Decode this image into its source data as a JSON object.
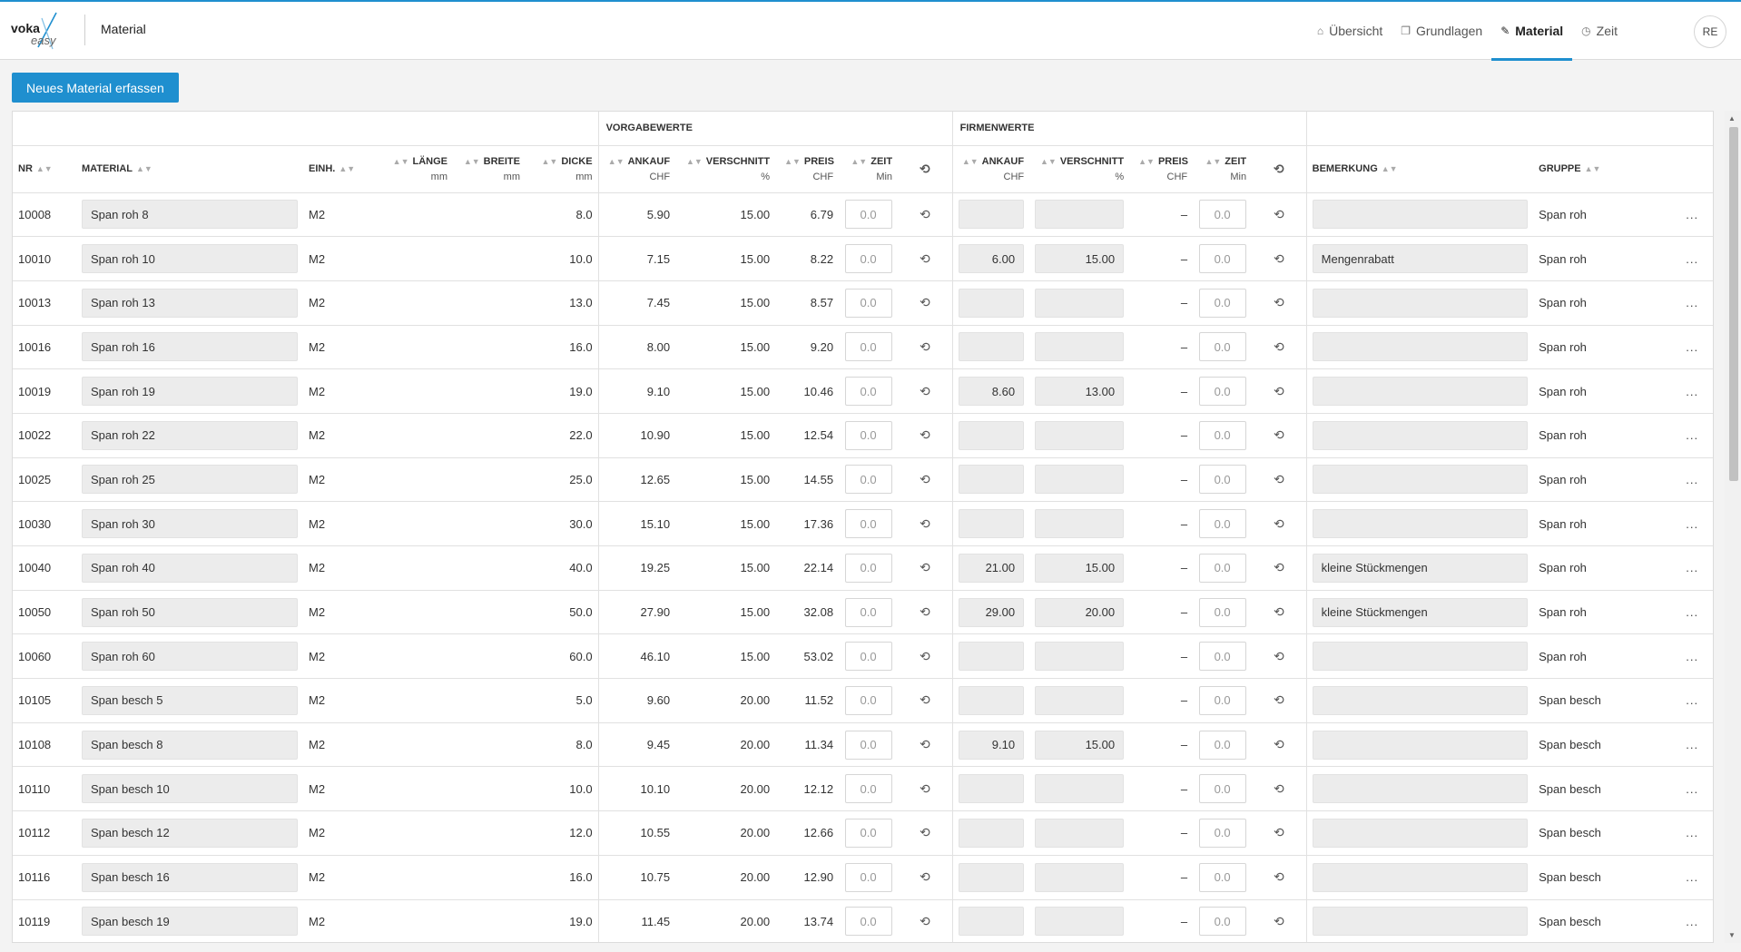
{
  "header": {
    "logo_text": "voka easy",
    "page_title": "Material",
    "nav": [
      {
        "label": "Übersicht",
        "icon": "home-icon",
        "active": false
      },
      {
        "label": "Grundlagen",
        "icon": "cube-icon",
        "active": false
      },
      {
        "label": "Material",
        "icon": "ruler-icon",
        "active": true
      },
      {
        "label": "Zeit",
        "icon": "clock-icon",
        "active": false
      }
    ],
    "avatar": "RE"
  },
  "toolbar": {
    "new_button": "Neues Material erfassen"
  },
  "table": {
    "groups": {
      "vorgabe": "VORGABEWERTE",
      "firma": "FIRMENWERTE"
    },
    "columns": {
      "nr": "NR",
      "material": "MATERIAL",
      "einh": "EINH.",
      "laenge": "LÄNGE",
      "laenge_unit": "mm",
      "breite": "BREITE",
      "breite_unit": "mm",
      "dicke": "DICKE",
      "dicke_unit": "mm",
      "ankauf": "ANKAUF",
      "ankauf_unit": "CHF",
      "verschnitt": "VERSCHNITT",
      "verschnitt_unit": "%",
      "preis": "PREIS",
      "preis_unit": "CHF",
      "zeit": "ZEIT",
      "zeit_unit": "Min",
      "f_ankauf": "ANKAUF",
      "f_ankauf_unit": "CHF",
      "f_verschnitt": "VERSCHNITT",
      "f_verschnitt_unit": "%",
      "f_preis": "PREIS",
      "f_preis_unit": "CHF",
      "f_zeit": "ZEIT",
      "f_zeit_unit": "Min",
      "bemerkung": "BEMERKUNG",
      "gruppe": "GRUPPE"
    },
    "rows": [
      {
        "nr": "10008",
        "material": "Span roh 8",
        "einh": "M2",
        "dicke": "8.0",
        "ankauf": "5.90",
        "verschnitt": "15.00",
        "preis": "6.79",
        "zeit": "0.0",
        "f_ankauf": "",
        "f_verschnitt": "",
        "f_preis": "–",
        "f_zeit": "0.0",
        "bemerkung": "",
        "gruppe": "Span roh"
      },
      {
        "nr": "10010",
        "material": "Span roh 10",
        "einh": "M2",
        "dicke": "10.0",
        "ankauf": "7.15",
        "verschnitt": "15.00",
        "preis": "8.22",
        "zeit": "0.0",
        "f_ankauf": "6.00",
        "f_verschnitt": "15.00",
        "f_preis": "–",
        "f_zeit": "0.0",
        "bemerkung": "Mengenrabatt",
        "gruppe": "Span roh"
      },
      {
        "nr": "10013",
        "material": "Span roh 13",
        "einh": "M2",
        "dicke": "13.0",
        "ankauf": "7.45",
        "verschnitt": "15.00",
        "preis": "8.57",
        "zeit": "0.0",
        "f_ankauf": "",
        "f_verschnitt": "",
        "f_preis": "–",
        "f_zeit": "0.0",
        "bemerkung": "",
        "gruppe": "Span roh"
      },
      {
        "nr": "10016",
        "material": "Span roh 16",
        "einh": "M2",
        "dicke": "16.0",
        "ankauf": "8.00",
        "verschnitt": "15.00",
        "preis": "9.20",
        "zeit": "0.0",
        "f_ankauf": "",
        "f_verschnitt": "",
        "f_preis": "–",
        "f_zeit": "0.0",
        "bemerkung": "",
        "gruppe": "Span roh"
      },
      {
        "nr": "10019",
        "material": "Span roh 19",
        "einh": "M2",
        "dicke": "19.0",
        "ankauf": "9.10",
        "verschnitt": "15.00",
        "preis": "10.46",
        "zeit": "0.0",
        "f_ankauf": "8.60",
        "f_verschnitt": "13.00",
        "f_preis": "–",
        "f_zeit": "0.0",
        "bemerkung": "",
        "gruppe": "Span roh"
      },
      {
        "nr": "10022",
        "material": "Span roh 22",
        "einh": "M2",
        "dicke": "22.0",
        "ankauf": "10.90",
        "verschnitt": "15.00",
        "preis": "12.54",
        "zeit": "0.0",
        "f_ankauf": "",
        "f_verschnitt": "",
        "f_preis": "–",
        "f_zeit": "0.0",
        "bemerkung": "",
        "gruppe": "Span roh"
      },
      {
        "nr": "10025",
        "material": "Span roh 25",
        "einh": "M2",
        "dicke": "25.0",
        "ankauf": "12.65",
        "verschnitt": "15.00",
        "preis": "14.55",
        "zeit": "0.0",
        "f_ankauf": "",
        "f_verschnitt": "",
        "f_preis": "–",
        "f_zeit": "0.0",
        "bemerkung": "",
        "gruppe": "Span roh"
      },
      {
        "nr": "10030",
        "material": "Span roh 30",
        "einh": "M2",
        "dicke": "30.0",
        "ankauf": "15.10",
        "verschnitt": "15.00",
        "preis": "17.36",
        "zeit": "0.0",
        "f_ankauf": "",
        "f_verschnitt": "",
        "f_preis": "–",
        "f_zeit": "0.0",
        "bemerkung": "",
        "gruppe": "Span roh"
      },
      {
        "nr": "10040",
        "material": "Span roh 40",
        "einh": "M2",
        "dicke": "40.0",
        "ankauf": "19.25",
        "verschnitt": "15.00",
        "preis": "22.14",
        "zeit": "0.0",
        "f_ankauf": "21.00",
        "f_verschnitt": "15.00",
        "f_preis": "–",
        "f_zeit": "0.0",
        "bemerkung": "kleine Stückmengen",
        "gruppe": "Span roh"
      },
      {
        "nr": "10050",
        "material": "Span roh 50",
        "einh": "M2",
        "dicke": "50.0",
        "ankauf": "27.90",
        "verschnitt": "15.00",
        "preis": "32.08",
        "zeit": "0.0",
        "f_ankauf": "29.00",
        "f_verschnitt": "20.00",
        "f_preis": "–",
        "f_zeit": "0.0",
        "bemerkung": "kleine Stückmengen",
        "gruppe": "Span roh"
      },
      {
        "nr": "10060",
        "material": "Span roh 60",
        "einh": "M2",
        "dicke": "60.0",
        "ankauf": "46.10",
        "verschnitt": "15.00",
        "preis": "53.02",
        "zeit": "0.0",
        "f_ankauf": "",
        "f_verschnitt": "",
        "f_preis": "–",
        "f_zeit": "0.0",
        "bemerkung": "",
        "gruppe": "Span roh"
      },
      {
        "nr": "10105",
        "material": "Span besch 5",
        "einh": "M2",
        "dicke": "5.0",
        "ankauf": "9.60",
        "verschnitt": "20.00",
        "preis": "11.52",
        "zeit": "0.0",
        "f_ankauf": "",
        "f_verschnitt": "",
        "f_preis": "–",
        "f_zeit": "0.0",
        "bemerkung": "",
        "gruppe": "Span besch"
      },
      {
        "nr": "10108",
        "material": "Span besch 8",
        "einh": "M2",
        "dicke": "8.0",
        "ankauf": "9.45",
        "verschnitt": "20.00",
        "preis": "11.34",
        "zeit": "0.0",
        "f_ankauf": "9.10",
        "f_verschnitt": "15.00",
        "f_preis": "–",
        "f_zeit": "0.0",
        "bemerkung": "",
        "gruppe": "Span besch"
      },
      {
        "nr": "10110",
        "material": "Span besch 10",
        "einh": "M2",
        "dicke": "10.0",
        "ankauf": "10.10",
        "verschnitt": "20.00",
        "preis": "12.12",
        "zeit": "0.0",
        "f_ankauf": "",
        "f_verschnitt": "",
        "f_preis": "–",
        "f_zeit": "0.0",
        "bemerkung": "",
        "gruppe": "Span besch"
      },
      {
        "nr": "10112",
        "material": "Span besch 12",
        "einh": "M2",
        "dicke": "12.0",
        "ankauf": "10.55",
        "verschnitt": "20.00",
        "preis": "12.66",
        "zeit": "0.0",
        "f_ankauf": "",
        "f_verschnitt": "",
        "f_preis": "–",
        "f_zeit": "0.0",
        "bemerkung": "",
        "gruppe": "Span besch"
      },
      {
        "nr": "10116",
        "material": "Span besch 16",
        "einh": "M2",
        "dicke": "16.0",
        "ankauf": "10.75",
        "verschnitt": "20.00",
        "preis": "12.90",
        "zeit": "0.0",
        "f_ankauf": "",
        "f_verschnitt": "",
        "f_preis": "–",
        "f_zeit": "0.0",
        "bemerkung": "",
        "gruppe": "Span besch"
      },
      {
        "nr": "10119",
        "material": "Span besch 19",
        "einh": "M2",
        "dicke": "19.0",
        "ankauf": "11.45",
        "verschnitt": "20.00",
        "preis": "13.74",
        "zeit": "0.0",
        "f_ankauf": "",
        "f_verschnitt": "",
        "f_preis": "–",
        "f_zeit": "0.0",
        "bemerkung": "",
        "gruppe": "Span besch"
      }
    ],
    "more_label": "...",
    "reset_icon": "reset-icon"
  },
  "colors": {
    "accent": "#1f8fcf",
    "field_bg": "#ececec",
    "border": "#e1e1e1"
  }
}
